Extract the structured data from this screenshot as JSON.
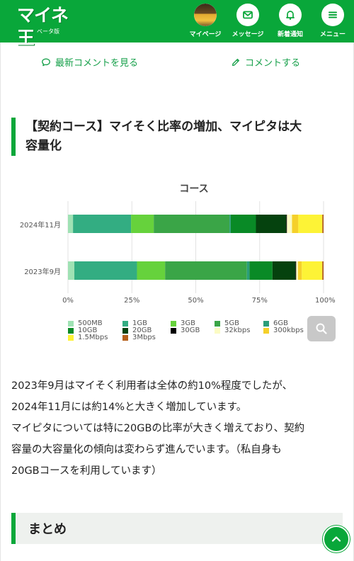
{
  "header": {
    "logo_text": "マイネ王",
    "logo_sub": "ベータ版",
    "nav": [
      {
        "label": "マイページ",
        "icon": "avatar"
      },
      {
        "label": "メッセージ",
        "icon": "mail-icon"
      },
      {
        "label": "新着通知",
        "icon": "bell-icon"
      },
      {
        "label": "メニュー",
        "icon": "hamburger-icon"
      }
    ]
  },
  "comments": {
    "latest_label": "最新コメントを見る",
    "post_label": "コメントする"
  },
  "section_heading": {
    "line1": "【契約コース】マイそく比率の増加、マイピタは大",
    "line2": "容量化"
  },
  "chart_data": {
    "type": "bar",
    "orientation": "horizontal",
    "stacked": true,
    "normalized": true,
    "title": "コース",
    "categories": [
      "2024年11月",
      "2023年9月"
    ],
    "x_ticks": [
      "0%",
      "25%",
      "50%",
      "75%",
      "100%"
    ],
    "xlim": [
      0,
      100
    ],
    "legend_position": "bottom",
    "series": [
      {
        "name": "500MB",
        "color": "#9fe2b4",
        "values": [
          2,
          2.5
        ]
      },
      {
        "name": "1GB",
        "color": "#33ad82",
        "values": [
          23,
          24.5
        ]
      },
      {
        "name": "3GB",
        "color": "#66d23c",
        "values": [
          9,
          11
        ]
      },
      {
        "name": "5GB",
        "color": "#3aa547",
        "values": [
          30,
          32
        ]
      },
      {
        "name": "6GB",
        "color": "#2a9e7a",
        "values": [
          0.5,
          1
        ]
      },
      {
        "name": "10GB",
        "color": "#098a26",
        "values": [
          10,
          9
        ]
      },
      {
        "name": "20GB",
        "color": "#05420e",
        "values": [
          12,
          9
        ]
      },
      {
        "name": "30GB",
        "color": "#000000",
        "values": [
          0.3,
          0.3
        ]
      },
      {
        "name": "32kbps",
        "color": "#fbfbc4",
        "values": [
          2,
          0.7
        ]
      },
      {
        "name": "300kbps",
        "color": "#f5d02a",
        "values": [
          2.5,
          1.5
        ]
      },
      {
        "name": "1.5Mbps",
        "color": "#fdf336",
        "values": [
          9.5,
          8
        ]
      },
      {
        "name": "3Mbps",
        "color": "#b5601a",
        "values": [
          0.5,
          0.5
        ]
      }
    ]
  },
  "body": {
    "p1": "2023年9月はマイそく利用者は全体の約10%程度でしたが、",
    "p2": "2024年11月には約14%と大きく増加しています。",
    "p3": "マイピタについては特に20GBの比率が大きく増えており、契約",
    "p4": "容量の大容量化の傾向は変わらず進んでいます。（私自身も",
    "p5": "20GBコースを利用しています）"
  },
  "summary_heading": "まとめ",
  "colors": {
    "brand": "#09a73a",
    "link": "#16a04a"
  }
}
